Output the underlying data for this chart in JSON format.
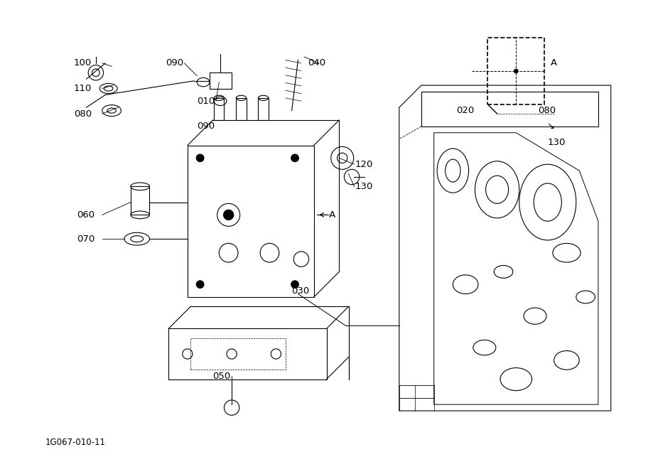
{
  "title": "",
  "background_color": "#ffffff",
  "line_color": "#000000",
  "text_color": "#000000",
  "diagram_code": "1G067-010-11",
  "fig_width": 9.19,
  "fig_height": 6.67,
  "dpi": 100
}
